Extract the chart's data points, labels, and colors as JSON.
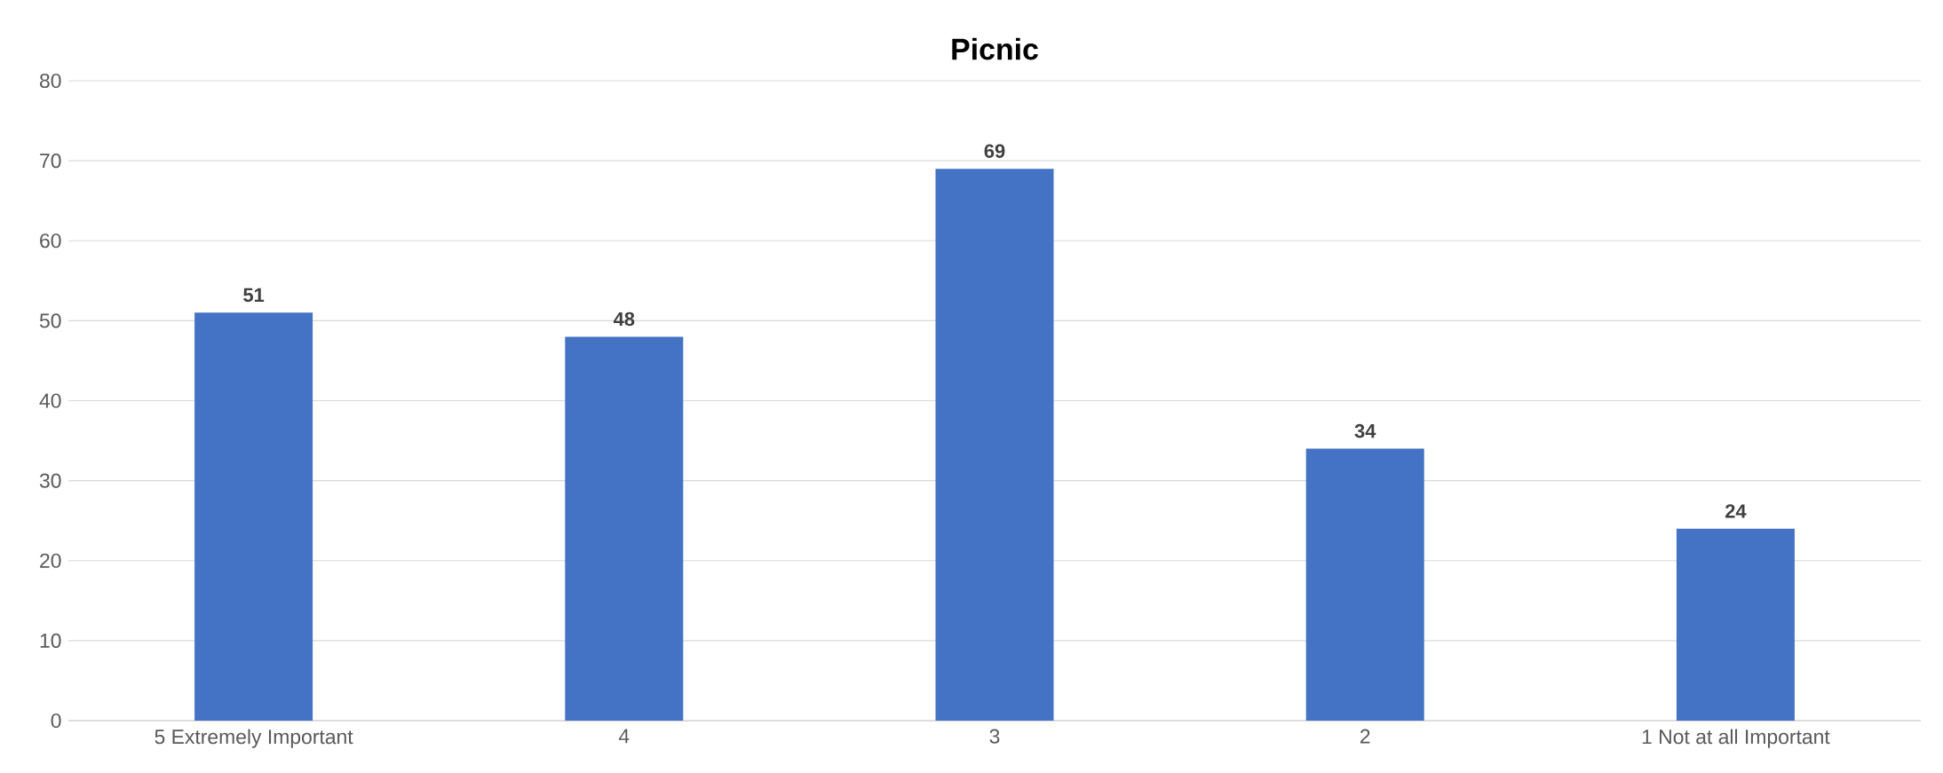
{
  "chart_data": {
    "type": "bar",
    "title": "Picnic",
    "categories": [
      "5 Extremely Important",
      "4",
      "3",
      "2",
      "1 Not at all Important"
    ],
    "values": [
      51,
      48,
      69,
      34,
      24
    ],
    "color": "#4472c4",
    "ylim": [
      0,
      80
    ],
    "yticks": [
      0,
      10,
      20,
      30,
      40,
      50,
      60,
      70,
      80
    ],
    "grid": "y",
    "data_labels": true
  }
}
